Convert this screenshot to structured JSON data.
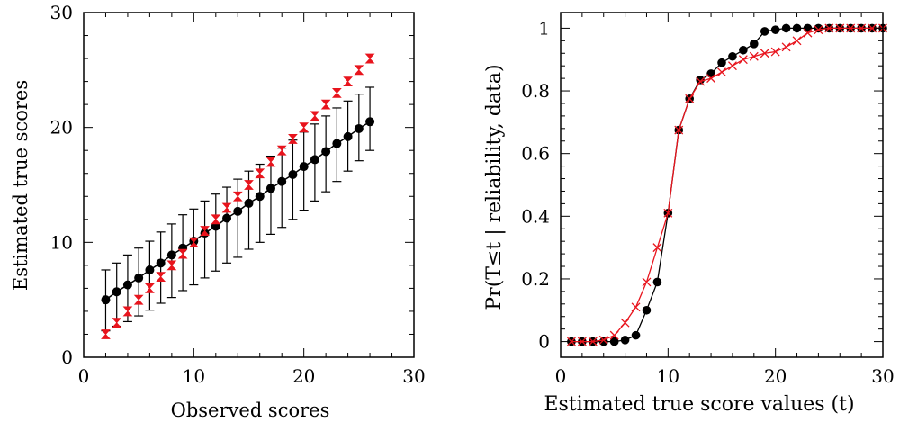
{
  "colors": {
    "black_series": "#000000",
    "red_series": "#e8141d",
    "axes": "#000000"
  },
  "chart_data": [
    {
      "type": "scatter",
      "xlabel": "Observed scores",
      "ylabel": "Estimated true scores",
      "xlim": [
        0,
        30
      ],
      "ylim": [
        0,
        30
      ],
      "x_ticks": [
        "0",
        "10",
        "20",
        "30"
      ],
      "y_ticks": [
        "0",
        "10",
        "20",
        "30"
      ],
      "grid": false,
      "series": [
        {
          "color": "#000000",
          "marker": "filled-circle",
          "connected": true,
          "x": [
            2,
            3,
            4,
            5,
            6,
            7,
            8,
            9,
            10,
            11,
            12,
            13,
            14,
            15,
            16,
            17,
            18,
            19,
            20,
            21,
            22,
            23,
            24,
            25,
            26
          ],
          "y": [
            5.0,
            5.7,
            6.3,
            6.9,
            7.6,
            8.2,
            8.9,
            9.5,
            10.1,
            10.8,
            11.4,
            12.1,
            12.7,
            13.4,
            14.0,
            14.7,
            15.3,
            15.9,
            16.6,
            17.2,
            17.9,
            18.6,
            19.2,
            19.9,
            20.5
          ],
          "y_low": [
            2.3,
            2.7,
            3.1,
            3.6,
            4.1,
            4.7,
            5.2,
            5.8,
            6.3,
            6.9,
            7.5,
            8.2,
            8.7,
            9.4,
            10.0,
            10.7,
            11.3,
            12.0,
            12.8,
            13.6,
            14.4,
            15.3,
            16.2,
            17.1,
            18.0
          ],
          "y_high": [
            7.6,
            8.2,
            8.9,
            9.5,
            10.1,
            10.9,
            11.6,
            12.4,
            12.9,
            13.6,
            14.2,
            14.8,
            15.5,
            16.2,
            16.8,
            17.5,
            18.2,
            18.9,
            19.6,
            20.3,
            21.0,
            21.7,
            22.3,
            22.9,
            23.5
          ]
        },
        {
          "color": "#e8141d",
          "marker": "hourglass",
          "connected": false,
          "x": [
            2,
            3,
            4,
            5,
            6,
            7,
            8,
            9,
            10,
            11,
            12,
            13,
            14,
            15,
            16,
            17,
            18,
            19,
            20,
            21,
            22,
            23,
            24,
            25,
            26
          ],
          "y": [
            2.0,
            3.0,
            4.0,
            5.0,
            6.0,
            7.0,
            8.0,
            9.0,
            10.0,
            11.0,
            12.0,
            13.0,
            14.0,
            15.0,
            16.0,
            17.0,
            18.0,
            19.0,
            20.0,
            21.0,
            22.0,
            23.0,
            24.0,
            25.0,
            26.0
          ]
        }
      ]
    },
    {
      "type": "line",
      "xlabel": "Estimated true score values (t)",
      "ylabel": "Pr(T≤t | reliability, data)",
      "xlim": [
        0,
        30
      ],
      "ylim": [
        -0.05,
        1.05
      ],
      "x_ticks": [
        "0",
        "10",
        "20",
        "30"
      ],
      "y_ticks": [
        "0",
        "0.2",
        "0.4",
        "0.6",
        "0.8",
        "1"
      ],
      "grid": false,
      "series": [
        {
          "color": "#000000",
          "marker": "filled-circle",
          "x": [
            1,
            2,
            3,
            4,
            5,
            6,
            7,
            8,
            9,
            10,
            11,
            12,
            13,
            14,
            15,
            16,
            17,
            18,
            19,
            20,
            21,
            22,
            23,
            24,
            25,
            26,
            27,
            28,
            29,
            30
          ],
          "y": [
            0,
            0,
            0,
            0,
            0,
            0.005,
            0.02,
            0.1,
            0.19,
            0.41,
            0.675,
            0.775,
            0.835,
            0.855,
            0.89,
            0.91,
            0.93,
            0.95,
            0.99,
            0.995,
            1,
            1,
            1,
            1,
            1,
            1,
            1,
            1,
            1,
            1
          ]
        },
        {
          "color": "#e8141d",
          "marker": "x",
          "x": [
            1,
            2,
            3,
            4,
            5,
            6,
            7,
            8,
            9,
            10,
            11,
            12,
            13,
            14,
            15,
            16,
            17,
            18,
            19,
            20,
            21,
            22,
            23,
            24,
            25,
            26,
            27,
            28,
            29,
            30
          ],
          "y": [
            0,
            0,
            0,
            0.005,
            0.02,
            0.06,
            0.11,
            0.19,
            0.3,
            0.41,
            0.675,
            0.775,
            0.83,
            0.84,
            0.86,
            0.88,
            0.9,
            0.91,
            0.92,
            0.925,
            0.94,
            0.96,
            0.985,
            0.995,
            1,
            1,
            1,
            1,
            1,
            1
          ]
        }
      ]
    }
  ]
}
